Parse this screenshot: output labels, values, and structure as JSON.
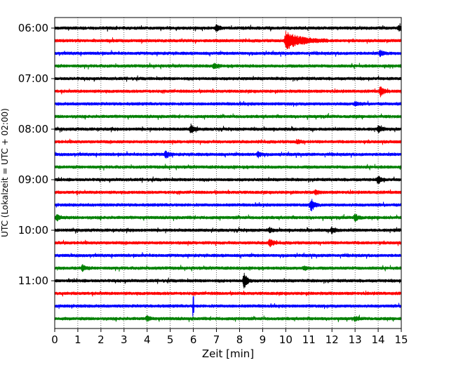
{
  "chart_data": {
    "type": "line",
    "description_axis": "helicorder",
    "xlabel": "Zeit  [min]",
    "ylabel": "UTC (Lokalzeit = UTC + 02:00)",
    "xlim": [
      0,
      15
    ],
    "x_ticks": [
      0,
      1,
      2,
      3,
      4,
      5,
      6,
      7,
      8,
      9,
      10,
      11,
      12,
      13,
      14,
      15
    ],
    "y_ticks": [
      "06:00",
      "07:00",
      "08:00",
      "09:00",
      "10:00",
      "11:00"
    ],
    "grid": "vertical dotted at each minute",
    "trace_colors": [
      "#000000",
      "#ff0000",
      "#0000ff",
      "#008000"
    ],
    "traces": [
      {
        "start": "06:00",
        "color": "#000000",
        "events": [
          {
            "t": 7.0,
            "amp": 0.35
          },
          {
            "t": 14.9,
            "amp": 0.3
          }
        ]
      },
      {
        "start": "06:15",
        "color": "#ff0000",
        "events": [
          {
            "t": 10.0,
            "amp": 1.0,
            "dur": 1.8
          }
        ]
      },
      {
        "start": "06:30",
        "color": "#0000ff",
        "events": [
          {
            "t": 14.1,
            "amp": 0.35
          }
        ]
      },
      {
        "start": "06:45",
        "color": "#008000",
        "events": [
          {
            "t": 6.9,
            "amp": 0.25
          }
        ]
      },
      {
        "start": "07:00",
        "color": "#000000",
        "events": []
      },
      {
        "start": "07:15",
        "color": "#ff0000",
        "events": [
          {
            "t": 14.1,
            "amp": 0.55
          }
        ]
      },
      {
        "start": "07:30",
        "color": "#0000ff",
        "events": [
          {
            "t": 13.0,
            "amp": 0.2
          }
        ]
      },
      {
        "start": "07:45",
        "color": "#008000",
        "events": []
      },
      {
        "start": "08:00",
        "color": "#000000",
        "events": [
          {
            "t": 5.9,
            "amp": 0.5
          },
          {
            "t": 14.0,
            "amp": 0.3
          }
        ]
      },
      {
        "start": "08:15",
        "color": "#ff0000",
        "events": [
          {
            "t": 10.5,
            "amp": 0.2
          }
        ]
      },
      {
        "start": "08:30",
        "color": "#0000ff",
        "events": [
          {
            "t": 4.8,
            "amp": 0.4
          },
          {
            "t": 8.8,
            "amp": 0.3
          }
        ]
      },
      {
        "start": "08:45",
        "color": "#008000",
        "events": []
      },
      {
        "start": "09:00",
        "color": "#000000",
        "events": [
          {
            "t": 14.0,
            "amp": 0.45
          }
        ]
      },
      {
        "start": "09:15",
        "color": "#ff0000",
        "events": [
          {
            "t": 11.3,
            "amp": 0.2
          }
        ]
      },
      {
        "start": "09:30",
        "color": "#0000ff",
        "events": [
          {
            "t": 11.1,
            "amp": 0.75
          }
        ]
      },
      {
        "start": "09:45",
        "color": "#008000",
        "events": [
          {
            "t": 0.1,
            "amp": 0.35
          },
          {
            "t": 13.0,
            "amp": 0.45
          }
        ]
      },
      {
        "start": "10:00",
        "color": "#000000",
        "events": [
          {
            "t": 9.3,
            "amp": 0.2
          },
          {
            "t": 12.0,
            "amp": 0.4
          }
        ]
      },
      {
        "start": "10:15",
        "color": "#ff0000",
        "events": [
          {
            "t": 9.3,
            "amp": 0.45
          }
        ]
      },
      {
        "start": "10:30",
        "color": "#0000ff",
        "events": []
      },
      {
        "start": "10:45",
        "color": "#008000",
        "events": [
          {
            "t": 1.2,
            "amp": 0.35
          },
          {
            "t": 10.8,
            "amp": 0.2
          }
        ]
      },
      {
        "start": "11:00",
        "color": "#000000",
        "events": [
          {
            "t": 8.2,
            "amp": 0.9
          }
        ]
      },
      {
        "start": "11:15",
        "color": "#ff0000",
        "events": []
      },
      {
        "start": "11:30",
        "color": "#0000ff",
        "events": [
          {
            "t": 6.0,
            "amp": 1.0,
            "spike": true
          }
        ]
      },
      {
        "start": "11:45",
        "color": "#008000",
        "events": [
          {
            "t": 4.0,
            "amp": 0.25
          },
          {
            "t": 13.0,
            "amp": 0.2
          }
        ]
      }
    ]
  }
}
